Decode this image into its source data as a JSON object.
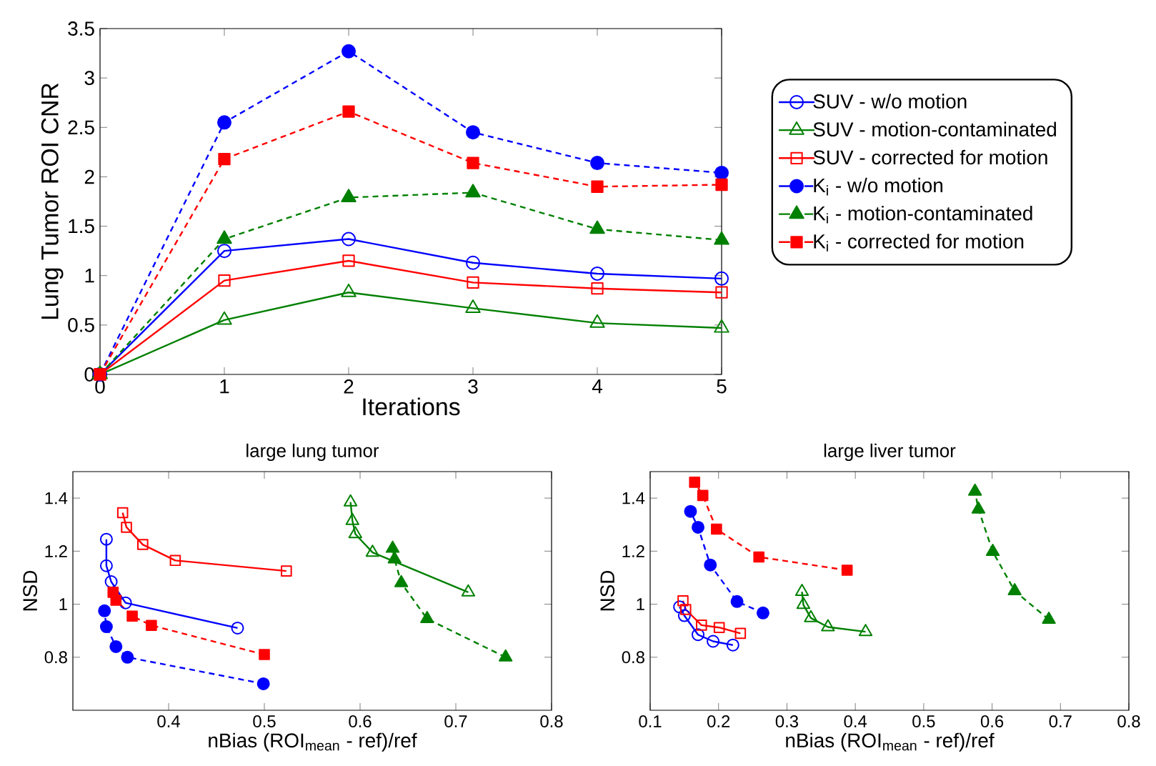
{
  "chart_data": [
    {
      "type": "line",
      "xlabel": "Iterations",
      "ylabel": "Lung Tumor ROI CNR",
      "x": [
        0,
        1,
        2,
        3,
        4,
        5
      ],
      "xlim": [
        0,
        5
      ],
      "ylim": [
        0,
        3.5
      ],
      "xticks": [
        0,
        1,
        2,
        3,
        4,
        5
      ],
      "yticks": [
        0,
        0.5,
        1,
        1.5,
        2,
        2.5,
        3,
        3.5
      ],
      "legend": "right",
      "series": [
        {
          "name": "SUV - w/o motion",
          "color": "#0000ff",
          "marker": "circle",
          "line_style": "solid",
          "values": [
            0,
            1.25,
            1.37,
            1.13,
            1.02,
            0.97
          ]
        },
        {
          "name": "SUV - motion-contaminated",
          "color": "#008000",
          "marker": "triangle",
          "line_style": "solid",
          "values": [
            0,
            0.55,
            0.83,
            0.67,
            0.52,
            0.47
          ]
        },
        {
          "name": "SUV - corrected for motion",
          "color": "#ff0000",
          "marker": "square",
          "line_style": "solid",
          "values": [
            0,
            0.95,
            1.15,
            0.93,
            0.87,
            0.83
          ]
        },
        {
          "name": "K$_{i}$ - w/o motion",
          "color": "#0000ff",
          "marker": "circle",
          "line_style": "dashed",
          "values": [
            0,
            2.55,
            3.27,
            2.45,
            2.14,
            2.04
          ]
        },
        {
          "name": "K$_{i}$ - motion-contaminated",
          "color": "#008000",
          "marker": "triangle",
          "line_style": "dashed",
          "values": [
            0,
            1.37,
            1.79,
            1.84,
            1.47,
            1.36
          ]
        },
        {
          "name": "K$_{i}$ - corrected for motion",
          "color": "#ff0000",
          "marker": "square",
          "line_style": "dashed",
          "values": [
            0,
            2.18,
            2.66,
            2.14,
            1.9,
            1.92
          ]
        }
      ]
    },
    {
      "type": "line",
      "title": "large lung tumor",
      "xlabel": "nBias (ROI$_{mean}$ - ref)/ref",
      "ylabel": "NSD",
      "xlim": [
        0.3,
        0.8
      ],
      "ylim": [
        0.6,
        1.5
      ],
      "xticks": [
        0.4,
        0.5,
        0.6,
        0.7,
        0.8
      ],
      "yticks": [
        0.8,
        1,
        1.2,
        1.4
      ],
      "series": [
        {
          "color": "#0000ff",
          "marker": "circle",
          "line_style": "solid",
          "x": [
            0.472,
            0.355,
            0.34,
            0.335,
            0.335
          ],
          "values": [
            0.91,
            1.005,
            1.085,
            1.145,
            1.245
          ]
        },
        {
          "color": "#008000",
          "marker": "triangle",
          "line_style": "solid",
          "x": [
            0.713,
            0.613,
            0.595,
            0.592,
            0.59
          ],
          "values": [
            1.045,
            1.195,
            1.265,
            1.315,
            1.385
          ]
        },
        {
          "color": "#ff0000",
          "marker": "square",
          "line_style": "solid",
          "x": [
            0.523,
            0.407,
            0.373,
            0.356,
            0.352
          ],
          "values": [
            1.125,
            1.165,
            1.225,
            1.29,
            1.345
          ]
        },
        {
          "color": "#0000ff",
          "marker": "circle",
          "line_style": "dashed",
          "x": [
            0.499,
            0.357,
            0.345,
            0.335,
            0.333
          ],
          "values": [
            0.7,
            0.8,
            0.84,
            0.915,
            0.975
          ]
        },
        {
          "color": "#008000",
          "marker": "triangle",
          "line_style": "dashed",
          "x": [
            0.752,
            0.67,
            0.643,
            0.636,
            0.634
          ],
          "values": [
            0.8,
            0.945,
            1.08,
            1.17,
            1.21
          ]
        },
        {
          "color": "#ff0000",
          "marker": "square",
          "line_style": "dashed",
          "x": [
            0.5,
            0.382,
            0.362,
            0.345,
            0.342
          ],
          "values": [
            0.81,
            0.92,
            0.955,
            1.015,
            1.045
          ]
        }
      ]
    },
    {
      "type": "line",
      "title": "large liver tumor",
      "xlabel": "nBias (ROI$_{mean}$ - ref)/ref",
      "ylabel": "NSD",
      "xlim": [
        0.1,
        0.8
      ],
      "ylim": [
        0.6,
        1.5
      ],
      "xticks": [
        0.1,
        0.2,
        0.3,
        0.4,
        0.5,
        0.6,
        0.7,
        0.8
      ],
      "yticks": [
        0.8,
        1,
        1.2,
        1.4
      ],
      "series": [
        {
          "color": "#0000ff",
          "marker": "circle",
          "line_style": "solid",
          "x": [
            0.221,
            0.192,
            0.17,
            0.15,
            0.143
          ],
          "values": [
            0.846,
            0.86,
            0.885,
            0.957,
            0.99
          ]
        },
        {
          "color": "#008000",
          "marker": "triangle",
          "line_style": "solid",
          "x": [
            0.415,
            0.36,
            0.335,
            0.324,
            0.322
          ],
          "values": [
            0.896,
            0.914,
            0.948,
            0.998,
            1.047
          ]
        },
        {
          "color": "#ff0000",
          "marker": "square",
          "line_style": "solid",
          "x": [
            0.232,
            0.201,
            0.175,
            0.152,
            0.148
          ],
          "values": [
            0.89,
            0.912,
            0.921,
            0.98,
            1.013
          ]
        },
        {
          "color": "#0000ff",
          "marker": "circle",
          "line_style": "dashed",
          "x": [
            0.265,
            0.227,
            0.188,
            0.17,
            0.159
          ],
          "values": [
            0.967,
            1.01,
            1.148,
            1.29,
            1.35
          ]
        },
        {
          "color": "#008000",
          "marker": "triangle",
          "line_style": "dashed",
          "x": [
            0.683,
            0.633,
            0.601,
            0.58,
            0.575
          ],
          "values": [
            0.942,
            1.05,
            1.198,
            1.358,
            1.425
          ]
        },
        {
          "color": "#ff0000",
          "marker": "square",
          "line_style": "dashed",
          "x": [
            0.388,
            0.259,
            0.197,
            0.177,
            0.165
          ],
          "values": [
            1.128,
            1.178,
            1.283,
            1.41,
            1.46
          ]
        }
      ]
    }
  ]
}
